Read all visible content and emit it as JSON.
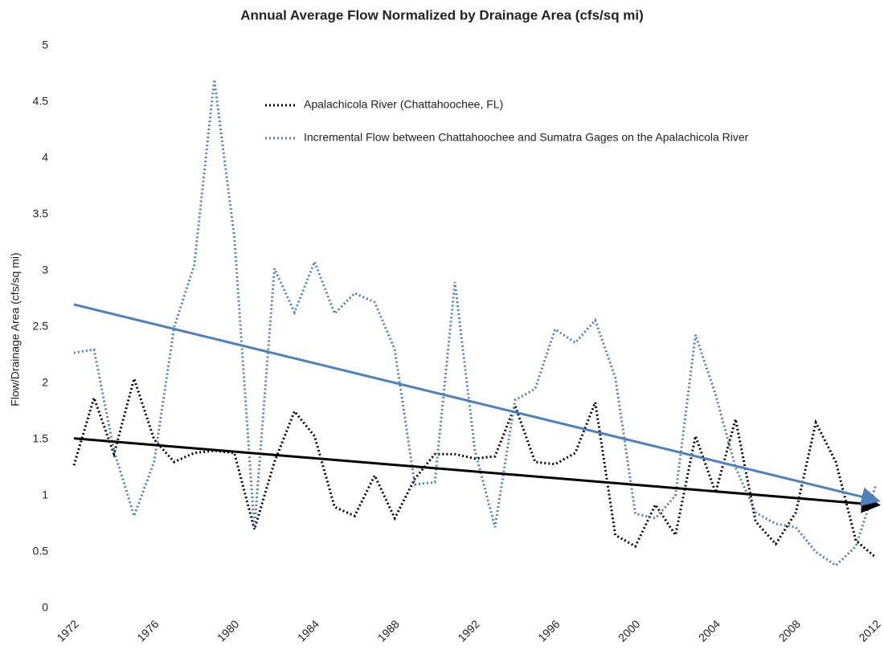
{
  "chart_data": {
    "type": "line",
    "title": "Annual Average Flow Normalized by Drainage Area (cfs/sq mi)",
    "y_label": "Flow/Drainage Area (cfs/sq mi)",
    "x": [
      1972,
      1973,
      1974,
      1975,
      1976,
      1977,
      1978,
      1979,
      1980,
      1981,
      1982,
      1983,
      1984,
      1985,
      1986,
      1987,
      1988,
      1989,
      1990,
      1991,
      1992,
      1993,
      1994,
      1995,
      1996,
      1997,
      1998,
      1999,
      2000,
      2001,
      2002,
      2003,
      2004,
      2005,
      2006,
      2007,
      2008,
      2009,
      2010,
      2011,
      2012
    ],
    "series": [
      {
        "name": "Apalachicola River (Chattahoochee, FL)",
        "color": "#000000",
        "values": [
          1.27,
          1.87,
          1.37,
          2.04,
          1.5,
          1.3,
          1.38,
          1.4,
          1.38,
          0.7,
          1.3,
          1.75,
          1.53,
          0.9,
          0.82,
          1.18,
          0.8,
          1.15,
          1.37,
          1.37,
          1.33,
          1.35,
          1.8,
          1.3,
          1.28,
          1.38,
          1.83,
          0.65,
          0.55,
          0.92,
          0.65,
          1.53,
          1.03,
          1.68,
          0.77,
          0.57,
          0.85,
          1.65,
          1.3,
          0.6,
          0.45
        ]
      },
      {
        "name": "Incremental Flow between Chattahoochee and Sumatra Gages on the Apalachicola River",
        "color": "#4f81bd",
        "values": [
          2.27,
          2.3,
          1.4,
          0.82,
          1.3,
          2.5,
          3.05,
          4.7,
          3.3,
          0.7,
          3.02,
          2.63,
          3.08,
          2.62,
          2.8,
          2.72,
          2.3,
          1.1,
          1.12,
          2.9,
          1.4,
          0.72,
          1.85,
          1.95,
          2.48,
          2.36,
          2.56,
          2.05,
          0.84,
          0.8,
          1.0,
          2.43,
          1.9,
          1.25,
          0.85,
          0.75,
          0.72,
          0.5,
          0.38,
          0.55,
          1.1
        ]
      }
    ],
    "trendlines": [
      {
        "color": "#000000",
        "x": [
          1972,
          2012
        ],
        "values": [
          1.51,
          0.92
        ]
      },
      {
        "color": "#4f81bd",
        "x": [
          1972,
          2012
        ],
        "values": [
          2.7,
          0.96
        ]
      }
    ],
    "xlim": [
      1972,
      2012
    ],
    "xticks": [
      1972,
      1976,
      1980,
      1984,
      1988,
      1992,
      1996,
      2000,
      2004,
      2008,
      2012
    ],
    "ylim": [
      0,
      5
    ],
    "yticks": [
      0,
      0.5,
      1,
      1.5,
      2,
      2.5,
      3,
      3.5,
      4,
      4.5,
      5
    ]
  }
}
